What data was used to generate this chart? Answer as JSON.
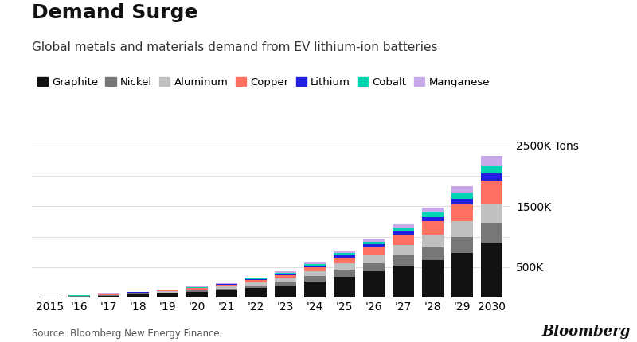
{
  "title": "Demand Surge",
  "subtitle": "Global metals and materials demand from EV lithium-ion batteries",
  "source": "Source: Bloomberg New Energy Finance",
  "year_labels": [
    "2015",
    "'16",
    "'17",
    "'18",
    "'19",
    "'20",
    "'21",
    "'22",
    "'23",
    "'24",
    "'25",
    "'26",
    "'27",
    "'28",
    "'29",
    "2030"
  ],
  "materials": [
    "Graphite",
    "Nickel",
    "Aluminum",
    "Copper",
    "Lithium",
    "Cobalt",
    "Manganese"
  ],
  "colors": [
    "#111111",
    "#777777",
    "#c0c0c0",
    "#ff7060",
    "#2020dd",
    "#00d4b0",
    "#c8a8e8"
  ],
  "data": {
    "Graphite": [
      10,
      18,
      30,
      48,
      65,
      88,
      115,
      155,
      200,
      265,
      345,
      430,
      520,
      620,
      740,
      900
    ],
    "Nickel": [
      2,
      5,
      8,
      13,
      18,
      25,
      34,
      47,
      62,
      83,
      110,
      138,
      170,
      210,
      260,
      330
    ],
    "Aluminum": [
      2,
      5,
      8,
      13,
      18,
      25,
      34,
      47,
      62,
      83,
      110,
      138,
      170,
      210,
      255,
      320
    ],
    "Copper": [
      2,
      4,
      6,
      9,
      13,
      17,
      24,
      35,
      48,
      65,
      95,
      128,
      170,
      220,
      280,
      380
    ],
    "Lithium": [
      1,
      2,
      3,
      4,
      6,
      8,
      11,
      15,
      20,
      26,
      35,
      44,
      55,
      68,
      87,
      115
    ],
    "Cobalt": [
      1,
      2,
      3,
      4,
      6,
      8,
      11,
      15,
      20,
      26,
      35,
      44,
      55,
      68,
      87,
      115
    ],
    "Manganese": [
      1,
      2,
      3,
      4,
      6,
      8,
      11,
      15,
      20,
      26,
      35,
      48,
      65,
      88,
      125,
      175
    ]
  },
  "ylim": [
    0,
    2700
  ],
  "yticks": [
    500,
    1500,
    2500
  ],
  "ytick_labels": [
    "500K",
    "1500K",
    "2500K Tons"
  ],
  "grid_ticks": [
    500,
    1000,
    1500,
    2000,
    2500
  ],
  "background_color": "#ffffff",
  "grid_color": "#e0e0e0",
  "title_fontsize": 18,
  "subtitle_fontsize": 11,
  "legend_fontsize": 9.5,
  "tick_fontsize": 10,
  "bloomberg_text": "Bloomberg"
}
